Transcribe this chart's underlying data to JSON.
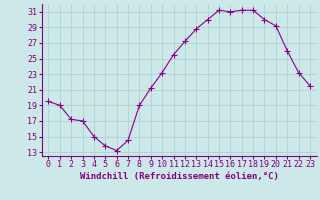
{
  "x": [
    0,
    1,
    2,
    3,
    4,
    5,
    6,
    7,
    8,
    9,
    10,
    11,
    12,
    13,
    14,
    15,
    16,
    17,
    18,
    19,
    20,
    21,
    22,
    23
  ],
  "y": [
    19.5,
    19.0,
    17.2,
    17.0,
    15.0,
    13.8,
    13.2,
    14.5,
    19.0,
    21.2,
    23.2,
    25.5,
    27.2,
    28.8,
    30.0,
    31.2,
    31.0,
    31.2,
    31.2,
    30.0,
    29.2,
    26.0,
    23.2,
    21.5
  ],
  "line_color": "#8b008b",
  "marker": "+",
  "marker_size": 4,
  "bg_color": "#cce8e8",
  "grid_color": "#aacece",
  "xlabel": "Windchill (Refroidissement éolien,°C)",
  "xlabel_fontsize": 6.5,
  "tick_fontsize": 6,
  "ylim": [
    12.5,
    32
  ],
  "yticks": [
    13,
    15,
    17,
    19,
    21,
    23,
    25,
    27,
    29,
    31
  ],
  "xticks": [
    0,
    1,
    2,
    3,
    4,
    5,
    6,
    7,
    8,
    9,
    10,
    11,
    12,
    13,
    14,
    15,
    16,
    17,
    18,
    19,
    20,
    21,
    22,
    23
  ],
  "line_width": 0.8,
  "text_color": "#800080"
}
